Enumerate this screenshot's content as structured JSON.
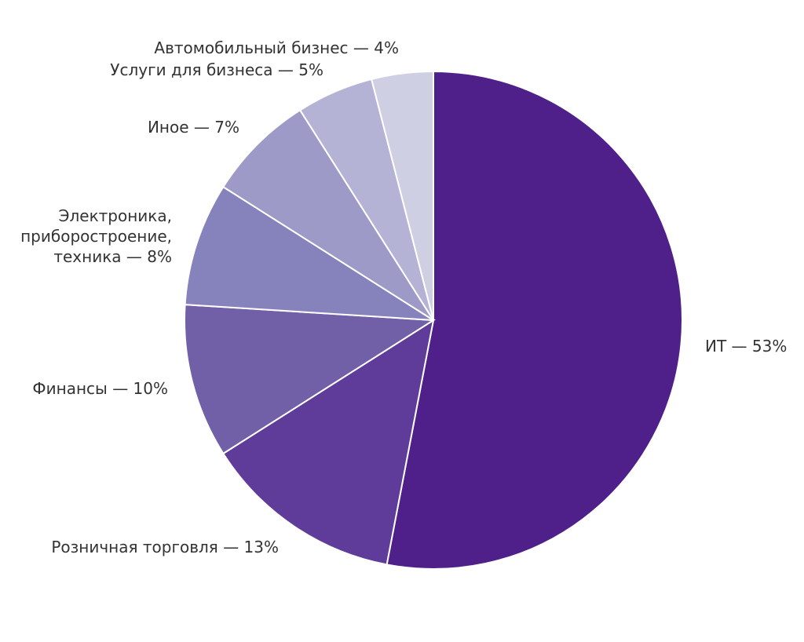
{
  "chart_data": {
    "type": "pie",
    "title": "",
    "slices": [
      {
        "label_lines": [
          "ИТ — 53%"
        ],
        "value": 53,
        "color": "#4f1f8a"
      },
      {
        "label_lines": [
          "Розничная торговля — 13%"
        ],
        "value": 13,
        "color": "#5f3c99"
      },
      {
        "label_lines": [
          "Финансы — 10%"
        ],
        "value": 10,
        "color": "#7160a8"
      },
      {
        "label_lines": [
          "Электроника,",
          "приборостроение,",
          "техника — 8%"
        ],
        "value": 8,
        "color": "#8682bb"
      },
      {
        "label_lines": [
          "Иное — 7%"
        ],
        "value": 7,
        "color": "#9d9ac7"
      },
      {
        "label_lines": [
          "Услуги для бизнеса — 5%"
        ],
        "value": 5,
        "color": "#b4b3d6"
      },
      {
        "label_lines": [
          "Автомобильный бизнес — 4%"
        ],
        "value": 4,
        "color": "#cfcfe4"
      }
    ]
  }
}
